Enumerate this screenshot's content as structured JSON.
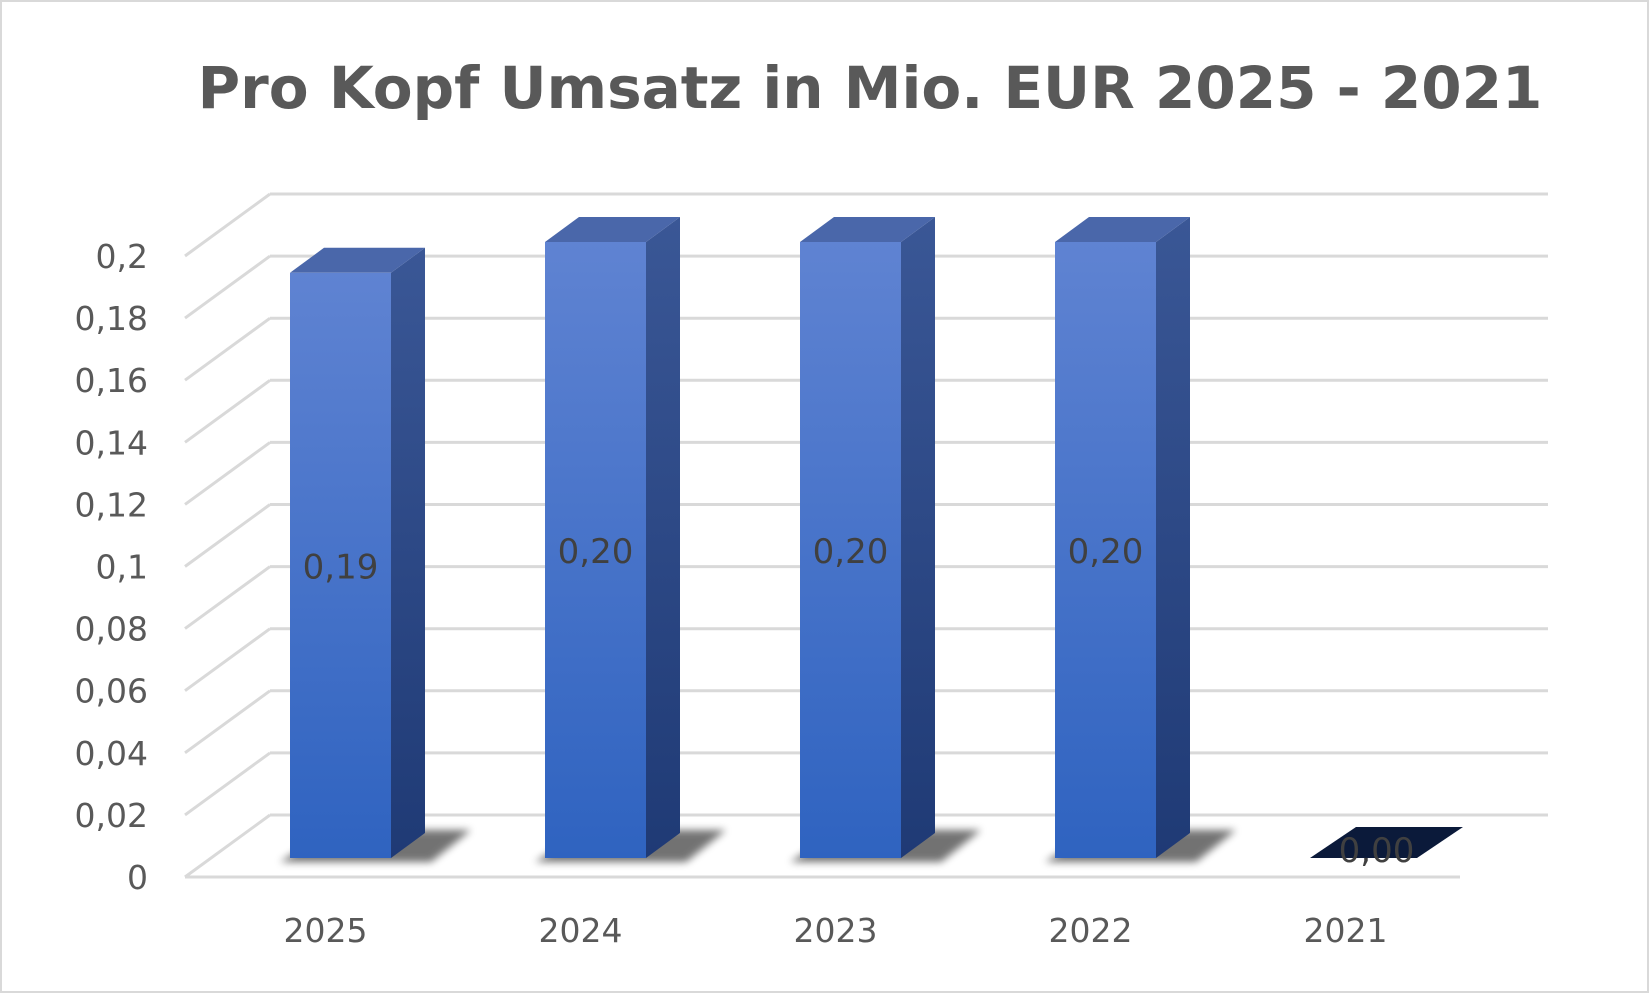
{
  "chart_data": {
    "type": "bar",
    "title": "Pro Kopf Umsatz in Mio. EUR 2025 - 2021",
    "categories": [
      "2025",
      "2024",
      "2023",
      "2022",
      "2021"
    ],
    "values": [
      0.19,
      0.2,
      0.2,
      0.2,
      0.0
    ],
    "data_labels": [
      "0,19",
      "0,20",
      "0,20",
      "0,20",
      "0,00"
    ],
    "y_ticks": [
      "0",
      "0,02",
      "0,04",
      "0,06",
      "0,08",
      "0,1",
      "0,12",
      "0,14",
      "0,16",
      "0,18",
      "0,2"
    ],
    "ylim": [
      0,
      0.2
    ],
    "grid": true,
    "legend": "none",
    "xlabel": "",
    "ylabel": "",
    "colors": {
      "bar_front_top": "#5f83d2",
      "bar_front_bottom": "#2f63c0",
      "bar_side": "#24437f",
      "bar_top": "#4a67aa",
      "grid": "#d9d9d9",
      "text": "#595959",
      "zero_bar": "#0b1a3a"
    }
  }
}
